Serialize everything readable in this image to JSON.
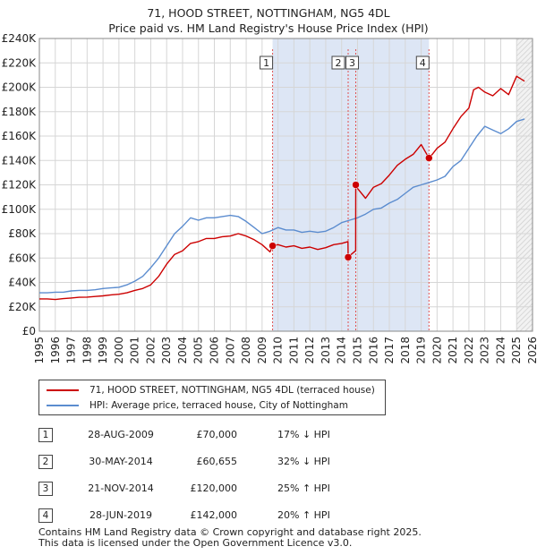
{
  "header": {
    "title": "71, HOOD STREET, NOTTINGHAM, NG5 4DL",
    "subtitle": "Price paid vs. HM Land Registry's House Price Index (HPI)"
  },
  "chart_data": {
    "type": "line",
    "title": "71, HOOD STREET, NOTTINGHAM, NG5 4DL",
    "subtitle": "Price paid vs. HM Land Registry's House Price Index (HPI)",
    "xlabel": "",
    "ylabel": "",
    "xlim": [
      1995,
      2026
    ],
    "ylim": [
      0,
      240000
    ],
    "x_ticks": [
      1995,
      1996,
      1997,
      1998,
      1999,
      2000,
      2001,
      2002,
      2003,
      2004,
      2005,
      2006,
      2007,
      2008,
      2009,
      2010,
      2011,
      2012,
      2013,
      2014,
      2015,
      2016,
      2017,
      2018,
      2019,
      2020,
      2021,
      2022,
      2023,
      2024,
      2025,
      2026
    ],
    "y_ticks": [
      {
        "value": 0,
        "label": "£0"
      },
      {
        "value": 20000,
        "label": "£20K"
      },
      {
        "value": 40000,
        "label": "£40K"
      },
      {
        "value": 60000,
        "label": "£60K"
      },
      {
        "value": 80000,
        "label": "£80K"
      },
      {
        "value": 100000,
        "label": "£100K"
      },
      {
        "value": 120000,
        "label": "£120K"
      },
      {
        "value": 140000,
        "label": "£140K"
      },
      {
        "value": 160000,
        "label": "£160K"
      },
      {
        "value": 180000,
        "label": "£180K"
      },
      {
        "value": 200000,
        "label": "£200K"
      },
      {
        "value": 220000,
        "label": "£220K"
      },
      {
        "value": 240000,
        "label": "£240K"
      }
    ],
    "grid": true,
    "legend_position": "below",
    "series": [
      {
        "name": "71, HOOD STREET, NOTTINGHAM, NG5 4DL (terraced house)",
        "color": "#cc0000",
        "x": [
          1995.0,
          1995.5,
          1996.0,
          1996.5,
          1997.0,
          1997.5,
          1998.0,
          1998.5,
          1999.0,
          1999.5,
          2000.0,
          2000.5,
          2001.0,
          2001.5,
          2002.0,
          2002.5,
          2003.0,
          2003.5,
          2004.0,
          2004.5,
          2005.0,
          2005.5,
          2006.0,
          2006.5,
          2007.0,
          2007.5,
          2008.0,
          2008.5,
          2009.0,
          2009.5,
          2009.66,
          2010.0,
          2010.5,
          2011.0,
          2011.5,
          2012.0,
          2012.5,
          2013.0,
          2013.5,
          2014.0,
          2014.4,
          2014.41,
          2014.6,
          2014.88,
          2014.89,
          2015.0,
          2015.5,
          2016.0,
          2016.5,
          2017.0,
          2017.5,
          2018.0,
          2018.5,
          2019.0,
          2019.4,
          2019.49,
          2019.7,
          2020.0,
          2020.5,
          2021.0,
          2021.5,
          2022.0,
          2022.3,
          2022.6,
          2023.0,
          2023.5,
          2024.0,
          2024.5,
          2025.0,
          2025.5
        ],
        "values": [
          26500,
          26500,
          26000,
          26700,
          27200,
          27800,
          28000,
          28500,
          29000,
          29800,
          30300,
          31500,
          33500,
          35000,
          38000,
          45000,
          55000,
          63000,
          66000,
          72000,
          73500,
          76000,
          76000,
          77500,
          78000,
          80000,
          78000,
          75000,
          71000,
          65000,
          70000,
          71000,
          69000,
          70000,
          68000,
          69000,
          67000,
          68500,
          71000,
          72000,
          73500,
          60655,
          63000,
          66000,
          120000,
          117000,
          109000,
          118000,
          121000,
          128000,
          136000,
          141000,
          145000,
          153000,
          144000,
          142000,
          145000,
          150000,
          155000,
          166000,
          176000,
          183000,
          198000,
          200000,
          196000,
          193000,
          199000,
          194000,
          209000,
          205000
        ]
      },
      {
        "name": "HPI: Average price, terraced house, City of Nottingham",
        "color": "#5b8ccf",
        "x": [
          1995.0,
          1995.5,
          1996.0,
          1996.5,
          1997.0,
          1997.5,
          1998.0,
          1998.5,
          1999.0,
          1999.5,
          2000.0,
          2000.5,
          2001.0,
          2001.5,
          2002.0,
          2002.5,
          2003.0,
          2003.5,
          2004.0,
          2004.5,
          2005.0,
          2005.5,
          2006.0,
          2006.5,
          2007.0,
          2007.5,
          2008.0,
          2008.5,
          2009.0,
          2009.5,
          2010.0,
          2010.5,
          2011.0,
          2011.5,
          2012.0,
          2012.5,
          2013.0,
          2013.5,
          2014.0,
          2014.5,
          2015.0,
          2015.5,
          2016.0,
          2016.5,
          2017.0,
          2017.5,
          2018.0,
          2018.5,
          2019.0,
          2019.5,
          2020.0,
          2020.5,
          2021.0,
          2021.5,
          2022.0,
          2022.5,
          2023.0,
          2023.5,
          2024.0,
          2024.5,
          2025.0,
          2025.5
        ],
        "values": [
          31500,
          31500,
          32000,
          32000,
          33000,
          33500,
          33500,
          34000,
          35000,
          35500,
          36000,
          38000,
          41000,
          45000,
          52000,
          60000,
          70000,
          80000,
          86000,
          93000,
          91000,
          93000,
          93000,
          94000,
          95000,
          94000,
          90000,
          85000,
          80000,
          82000,
          85000,
          83000,
          83000,
          81000,
          82000,
          81000,
          82000,
          85000,
          89000,
          91000,
          93000,
          96000,
          100000,
          101000,
          105000,
          108000,
          113000,
          118000,
          120000,
          122000,
          124000,
          127000,
          135000,
          140000,
          150000,
          160000,
          168000,
          165000,
          162000,
          166000,
          172000,
          174000
        ]
      }
    ],
    "sale_markers": [
      {
        "id": "1",
        "x": 2009.66,
        "value": 70000
      },
      {
        "id": "2",
        "x": 2014.41,
        "value": 60655
      },
      {
        "id": "3",
        "x": 2014.89,
        "value": 120000
      },
      {
        "id": "4",
        "x": 2019.49,
        "value": 142000
      }
    ],
    "forecast_from": 2025.0
  },
  "legend": {
    "property_label": "71, HOOD STREET, NOTTINGHAM, NG5 4DL (terraced house)",
    "hpi_label": "HPI: Average price, terraced house, City of Nottingham"
  },
  "sales": [
    {
      "num": "1",
      "date": "28-AUG-2009",
      "price": "£70,000",
      "hpi": "17% ↓ HPI"
    },
    {
      "num": "2",
      "date": "30-MAY-2014",
      "price": "£60,655",
      "hpi": "32% ↓ HPI"
    },
    {
      "num": "3",
      "date": "21-NOV-2014",
      "price": "£120,000",
      "hpi": "25% ↑ HPI"
    },
    {
      "num": "4",
      "date": "28-JUN-2019",
      "price": "£142,000",
      "hpi": "20% ↑ HPI"
    }
  ],
  "footer": {
    "line1": "Contains HM Land Registry data © Crown copyright and database right 2025.",
    "line2": "This data is licensed under the Open Government Licence v3.0."
  },
  "colors": {
    "property": "#cc0000",
    "hpi": "#5b8ccf",
    "highlight": "#dde6f5",
    "forecast": "#e8e8e8"
  }
}
